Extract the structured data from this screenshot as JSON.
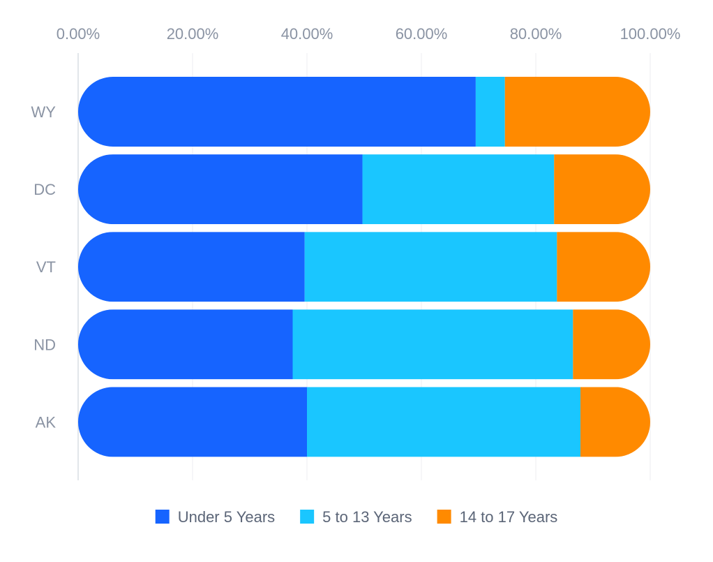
{
  "chart_data": {
    "type": "bar",
    "orientation": "horizontal",
    "stacked": true,
    "normalized": true,
    "categories": [
      "WY",
      "DC",
      "VT",
      "ND",
      "AK"
    ],
    "series": [
      {
        "name": "Under 5 Years",
        "color": "#1664FF",
        "values": [
          69.5,
          49.7,
          39.6,
          37.5,
          40.0
        ]
      },
      {
        "name": "5 to 13 Years",
        "color": "#1AC6FF",
        "values": [
          5.1,
          33.5,
          44.1,
          49.0,
          47.8
        ]
      },
      {
        "name": "14 to 17 Years",
        "color": "#FF8A00",
        "values": [
          25.4,
          16.8,
          16.3,
          13.5,
          12.2
        ]
      }
    ],
    "x_ticks": [
      "0.00%",
      "20.00%",
      "40.00%",
      "60.00%",
      "80.00%",
      "100.00%"
    ],
    "xlim": [
      0,
      100
    ],
    "x_axis_position": "top",
    "grid": true,
    "legend_position": "bottom",
    "title": "",
    "xlabel": "",
    "ylabel": ""
  }
}
